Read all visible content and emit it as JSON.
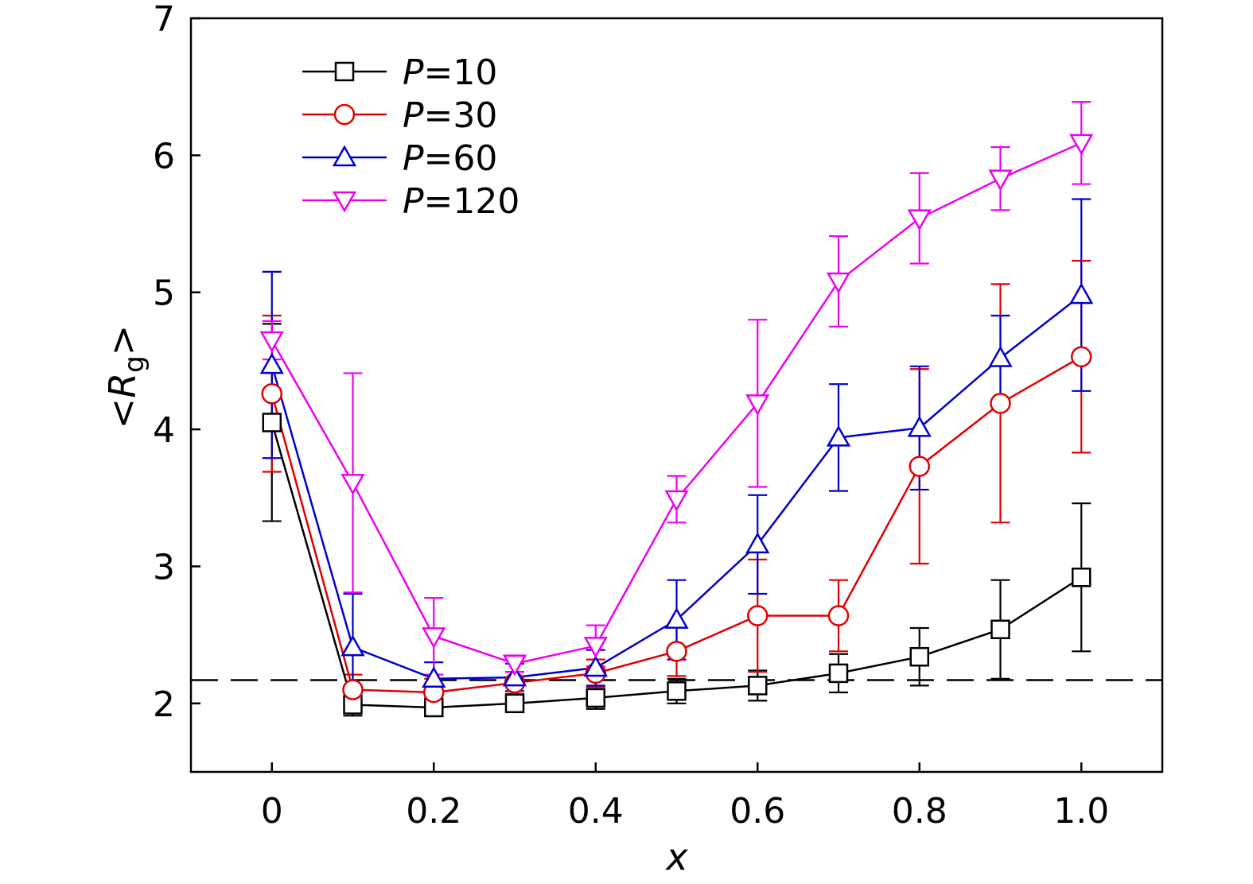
{
  "chart_data": {
    "type": "line",
    "title": "",
    "xlabel": "x",
    "ylabel": {
      "open": "<",
      "var": "R",
      "sub": "g",
      "close": ">"
    },
    "xlim": [
      -0.1,
      1.1
    ],
    "ylim": [
      1.5,
      7
    ],
    "x_ticks": [
      0,
      0.2,
      0.4,
      0.6,
      0.8,
      1.0
    ],
    "x_tick_labels": [
      "0",
      "0.2",
      "0.4",
      "0.6",
      "0.8",
      "1.0"
    ],
    "y_ticks": [
      2,
      3,
      4,
      5,
      6,
      7
    ],
    "y_tick_labels": [
      "2",
      "3",
      "4",
      "5",
      "6",
      "7"
    ],
    "x": [
      0,
      0.1,
      0.2,
      0.3,
      0.4,
      0.5,
      0.6,
      0.7,
      0.8,
      0.9,
      1.0
    ],
    "reference_line": {
      "y": 2.17,
      "style": "dashed",
      "color": "#000000"
    },
    "legend_position": "top-left",
    "series": [
      {
        "name": "P=10",
        "var": "P",
        "eq": "=10",
        "color": "#000000",
        "marker": "square",
        "values": [
          4.05,
          1.99,
          1.97,
          2.0,
          2.04,
          2.09,
          2.13,
          2.22,
          2.34,
          2.54,
          2.92
        ],
        "errors": [
          0.72,
          0.08,
          0.06,
          0.06,
          0.08,
          0.09,
          0.11,
          0.14,
          0.21,
          0.36,
          0.54
        ]
      },
      {
        "name": "P=30",
        "var": "P",
        "eq": "=30",
        "color": "#e00000",
        "marker": "circle",
        "values": [
          4.26,
          2.1,
          2.08,
          2.15,
          2.22,
          2.38,
          2.64,
          2.64,
          3.73,
          4.19,
          4.53
        ],
        "errors": [
          0.57,
          0.11,
          0.1,
          0.08,
          0.1,
          0.18,
          0.41,
          0.26,
          0.71,
          0.87,
          0.7
        ]
      },
      {
        "name": "P=60",
        "var": "P",
        "eq": "=60",
        "color": "#0000cc",
        "marker": "triangle-up",
        "values": [
          4.47,
          2.41,
          2.18,
          2.19,
          2.26,
          2.61,
          3.16,
          3.94,
          4.01,
          4.52,
          4.98
        ],
        "errors": [
          0.68,
          0.39,
          0.12,
          0.1,
          0.13,
          0.29,
          0.36,
          0.39,
          0.45,
          0.31,
          0.7
        ]
      },
      {
        "name": "P=120",
        "var": "P",
        "eq": "=120",
        "color": "#ee00ee",
        "marker": "triangle-down",
        "values": [
          4.65,
          3.61,
          2.49,
          2.29,
          2.42,
          3.49,
          4.19,
          5.08,
          5.54,
          5.83,
          6.09
        ],
        "errors": [
          0.14,
          0.8,
          0.28,
          0.06,
          0.15,
          0.17,
          0.61,
          0.33,
          0.33,
          0.23,
          0.3
        ]
      }
    ]
  }
}
